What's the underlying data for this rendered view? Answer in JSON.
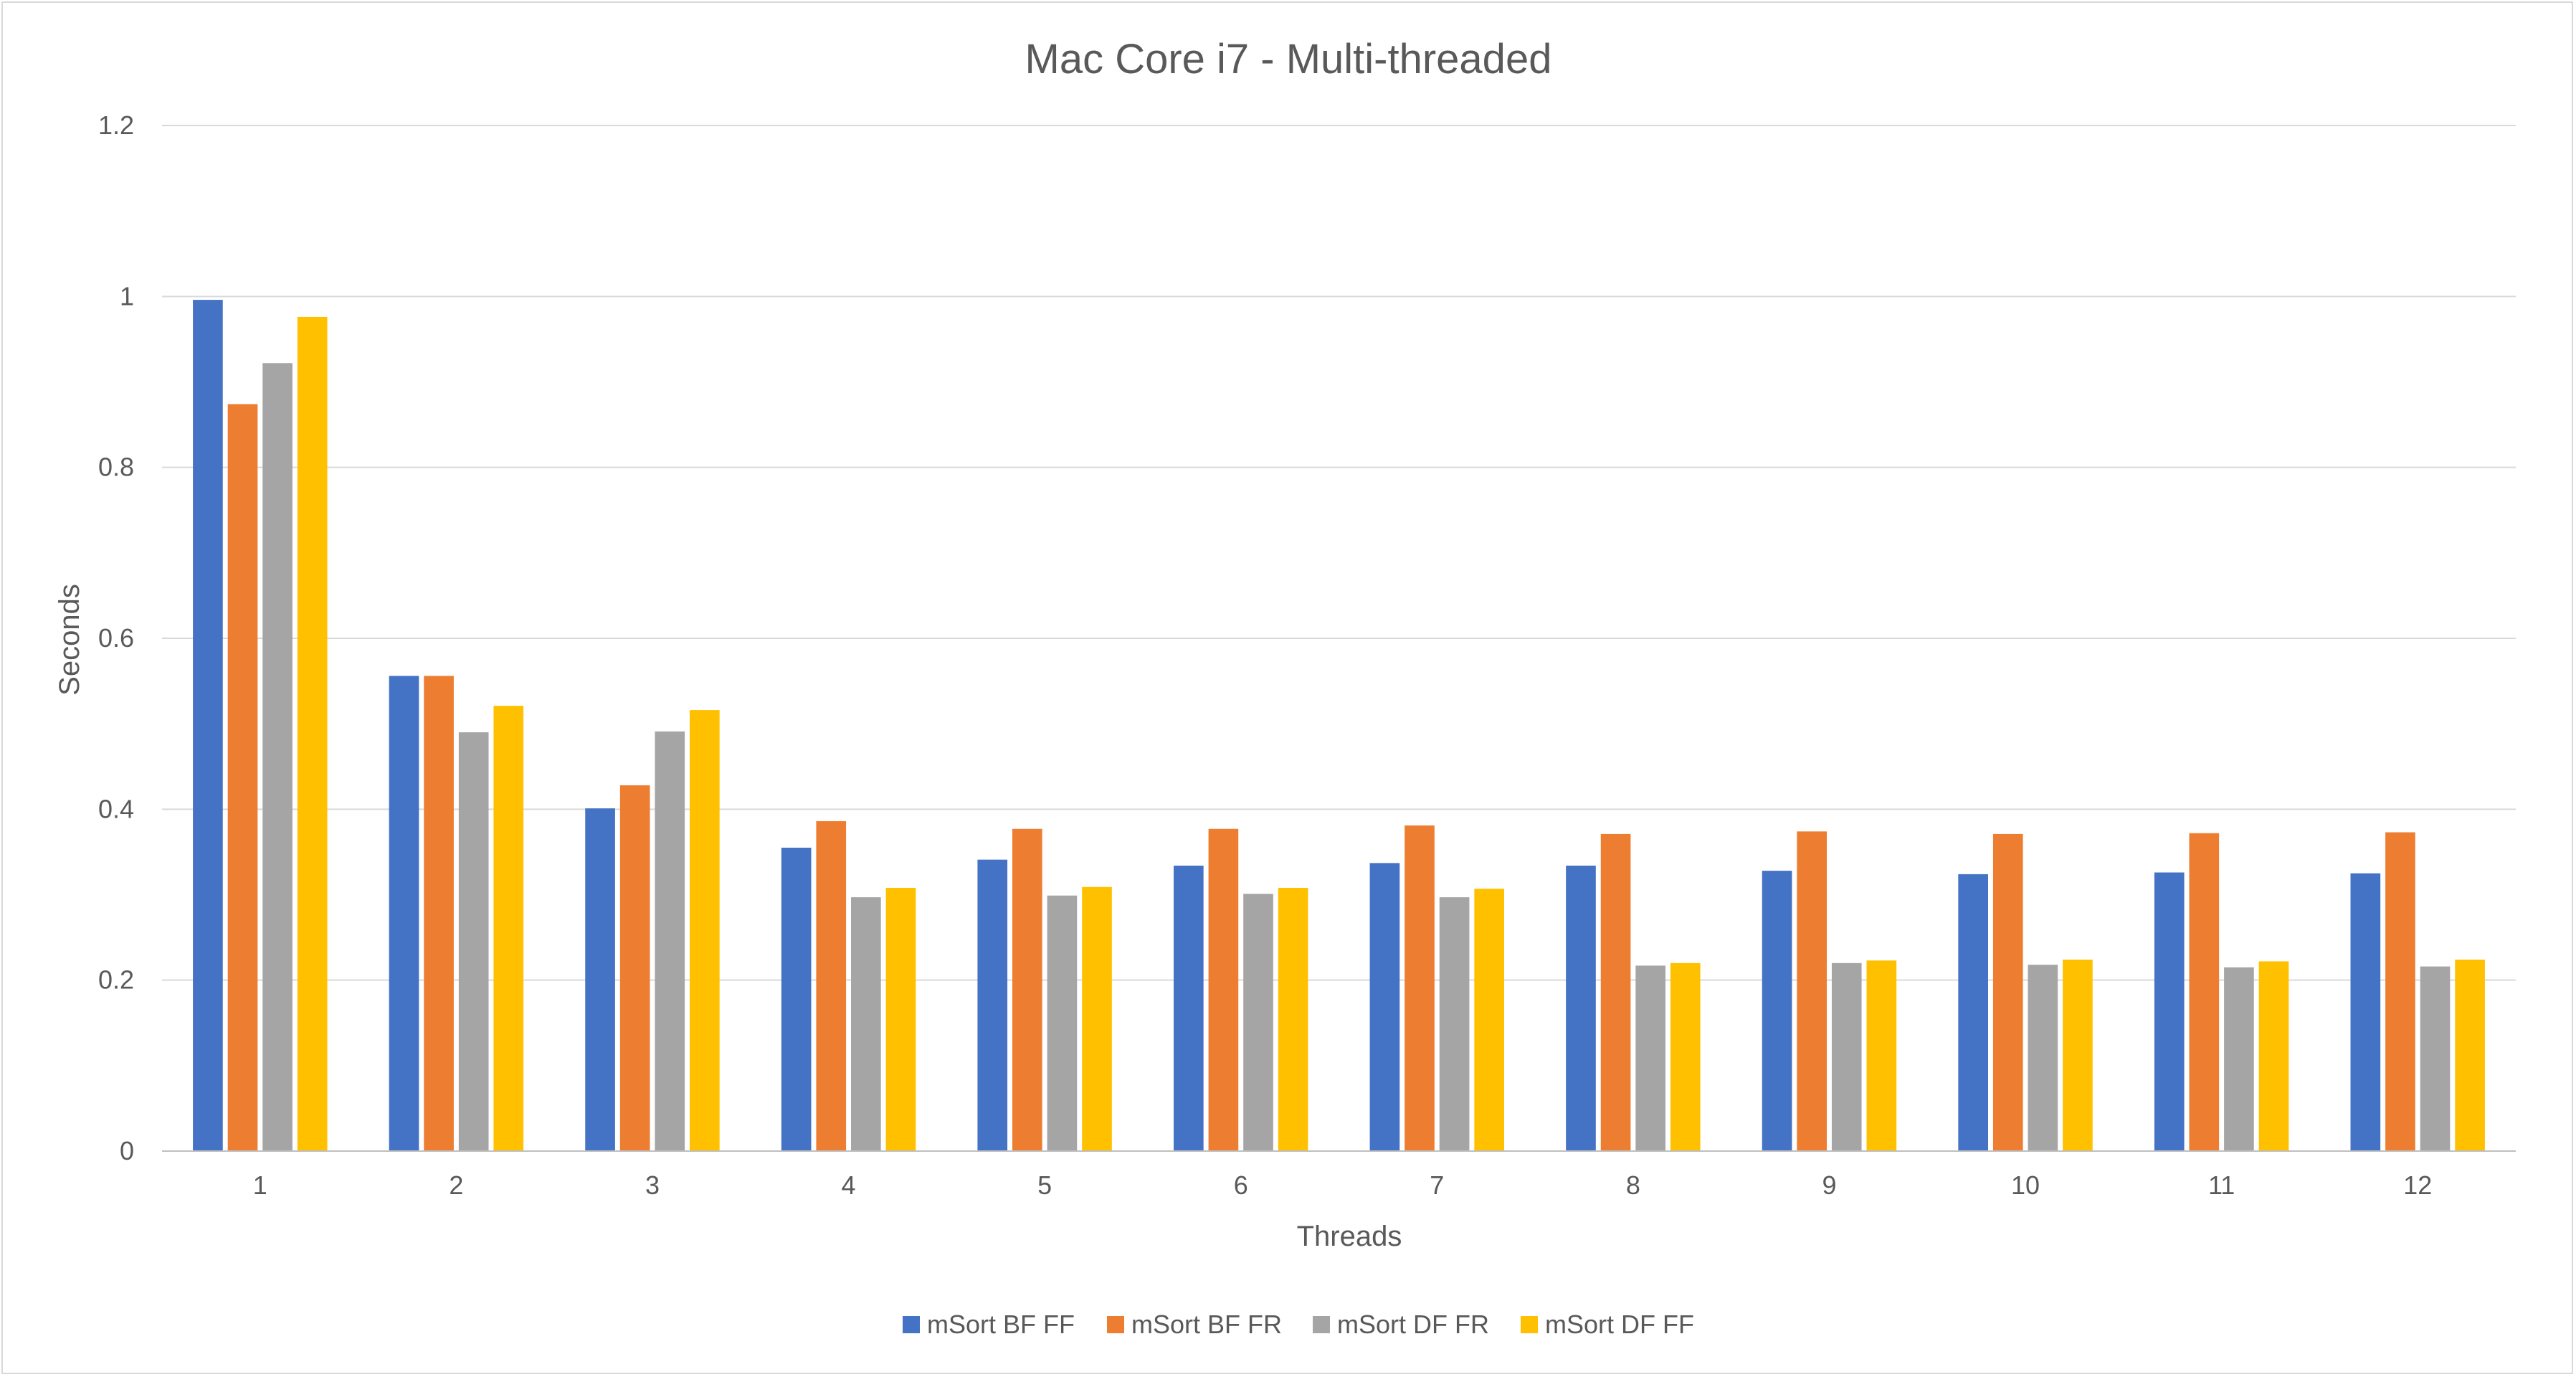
{
  "chart_data": {
    "type": "bar",
    "title": "Mac Core i7 - Multi-threaded",
    "xlabel": "Threads",
    "ylabel": "Seconds",
    "ylim": [
      0,
      1.2
    ],
    "yticks": [
      0,
      0.2,
      0.4,
      0.6,
      0.8,
      1,
      1.2
    ],
    "grid": true,
    "legend_position": "bottom",
    "categories": [
      "1",
      "2",
      "3",
      "4",
      "5",
      "6",
      "7",
      "8",
      "9",
      "10",
      "11",
      "12"
    ],
    "series": [
      {
        "name": "mSort BF FF",
        "color": "#4472C4",
        "values": [
          0.996,
          0.556,
          0.401,
          0.355,
          0.341,
          0.334,
          0.337,
          0.334,
          0.328,
          0.324,
          0.326,
          0.325
        ]
      },
      {
        "name": "mSort BF FR",
        "color": "#ED7D31",
        "values": [
          0.874,
          0.556,
          0.428,
          0.386,
          0.377,
          0.377,
          0.381,
          0.371,
          0.374,
          0.371,
          0.372,
          0.373
        ]
      },
      {
        "name": "mSort DF FR",
        "color": "#A5A5A5",
        "values": [
          0.922,
          0.49,
          0.491,
          0.297,
          0.299,
          0.301,
          0.297,
          0.217,
          0.22,
          0.218,
          0.215,
          0.216
        ]
      },
      {
        "name": "mSort DF FF",
        "color": "#FFC000",
        "values": [
          0.976,
          0.521,
          0.516,
          0.308,
          0.309,
          0.308,
          0.307,
          0.22,
          0.223,
          0.224,
          0.222,
          0.224
        ]
      }
    ]
  }
}
